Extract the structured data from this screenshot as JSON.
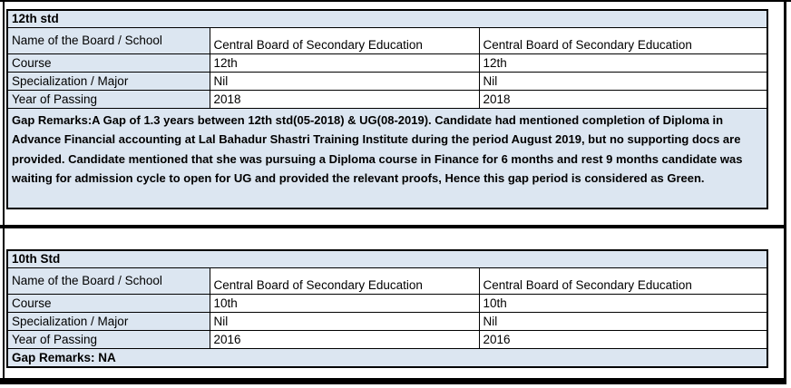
{
  "colors": {
    "cell_fill": "#dce6f1",
    "border": "#000000",
    "text": "#000000"
  },
  "sections": {
    "twelfth": {
      "title": "12th std",
      "rows": [
        {
          "label": "Name of the Board / School",
          "values": [
            "Central Board of Secondary Education",
            "Central Board of Secondary Education"
          ]
        },
        {
          "label": "Course",
          "values": [
            "12th",
            "12th"
          ]
        },
        {
          "label": "Specialization / Major",
          "values": [
            "Nil",
            "Nil"
          ]
        },
        {
          "label": "Year of Passing",
          "values": [
            "2018",
            "2018"
          ]
        }
      ],
      "gap_remarks": "Gap Remarks:A Gap of 1.3 years between 12th std(05-2018) & UG(08-2019). Candidate had mentioned completion of Diploma in Advance Financial accounting at Lal Bahadur Shastri Training Institute during the period August 2019, but no supporting docs are provided. Candidate mentioned that she was pursuing a Diploma course in Finance for 6 months and rest 9 months candidate was waiting for admission cycle to open for UG and provided the relevant proofs, Hence this gap period is considered as Green."
    },
    "tenth": {
      "title": "10th Std",
      "rows": [
        {
          "label": "Name of the Board / School",
          "values": [
            "Central Board of Secondary Education",
            "Central Board of Secondary Education"
          ]
        },
        {
          "label": "Course",
          "values": [
            "10th",
            "10th"
          ]
        },
        {
          "label": "Specialization / Major",
          "values": [
            "Nil",
            "Nil"
          ]
        },
        {
          "label": "Year of Passing",
          "values": [
            "2016",
            "2016"
          ]
        }
      ],
      "gap_remarks": "Gap Remarks: NA"
    }
  }
}
